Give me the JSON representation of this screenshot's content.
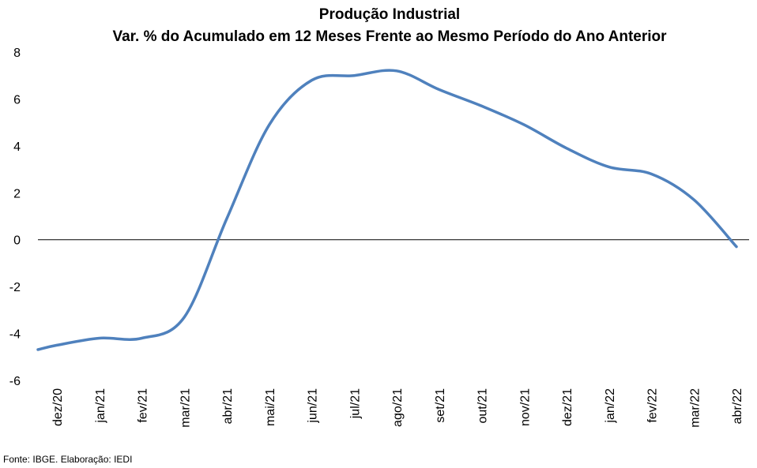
{
  "chart_data": {
    "type": "line",
    "title": "Produção Industrial",
    "subtitle": "Var. % do Acumulado em 12 Meses Frente ao Mesmo Período do Ano Anterior",
    "xlabel": "",
    "ylabel": "",
    "ylim": [
      -6,
      8
    ],
    "yticks": [
      "8",
      "6",
      "4",
      "2",
      "0",
      "-2",
      "-4",
      "-6"
    ],
    "categories": [
      "dez/20",
      "jan/21",
      "fev/21",
      "mar/21",
      "abr/21",
      "mai/21",
      "jun/21",
      "jul/21",
      "ago/21",
      "set/21",
      "out/21",
      "nov/21",
      "dez/21",
      "jan/22",
      "fev/22",
      "mar/22",
      "abr/22"
    ],
    "series": [
      {
        "values": [
          -4.5,
          -4.2,
          -4.2,
          -3.3,
          0.9,
          4.9,
          6.8,
          7.0,
          7.2,
          6.4,
          5.7,
          4.9,
          3.9,
          3.1,
          2.8,
          1.7,
          -0.3
        ],
        "color": "#4f81bd"
      }
    ],
    "zero_line": true,
    "grid": false,
    "legend": "none",
    "source": "Fonte: IBGE. Elaboração: IEDI"
  }
}
